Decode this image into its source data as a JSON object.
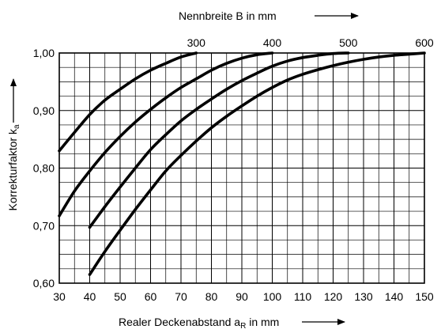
{
  "chart_data": {
    "type": "line",
    "top_axis_label": "Nennbreite B in mm",
    "xlabel_main": "Realer Deckenabstand a",
    "xlabel_sub": "R",
    "xlabel_unit": " in mm",
    "ylabel_main": "Korrekturfaktor k",
    "ylabel_sub": "a",
    "xlim": [
      30,
      150
    ],
    "ylim": [
      0.6,
      1.0
    ],
    "x_ticks": [
      "30",
      "40",
      "50",
      "60",
      "70",
      "80",
      "90",
      "100",
      "110",
      "120",
      "130",
      "140",
      "150"
    ],
    "y_ticks": [
      "0,60",
      "0,70",
      "0,80",
      "0,90",
      "1,00"
    ],
    "series": [
      {
        "name": "300",
        "x": [
          30,
          35,
          40,
          45,
          50,
          55,
          60,
          65,
          70,
          75
        ],
        "y": [
          0.83,
          0.862,
          0.893,
          0.918,
          0.937,
          0.955,
          0.97,
          0.982,
          0.993,
          1.0
        ]
      },
      {
        "name": "400",
        "x": [
          30,
          35,
          40,
          45,
          50,
          55,
          60,
          65,
          70,
          75,
          80,
          85,
          90,
          95,
          100
        ],
        "y": [
          0.717,
          0.76,
          0.795,
          0.827,
          0.855,
          0.88,
          0.902,
          0.922,
          0.94,
          0.955,
          0.97,
          0.982,
          0.991,
          0.997,
          1.0
        ]
      },
      {
        "name": "500",
        "x": [
          40,
          45,
          50,
          55,
          60,
          65,
          70,
          75,
          80,
          85,
          90,
          95,
          100,
          105,
          110,
          115,
          120,
          125
        ],
        "y": [
          0.697,
          0.733,
          0.767,
          0.8,
          0.832,
          0.858,
          0.882,
          0.902,
          0.92,
          0.937,
          0.952,
          0.965,
          0.977,
          0.986,
          0.992,
          0.996,
          0.999,
          1.0
        ]
      },
      {
        "name": "600",
        "x": [
          40,
          45,
          50,
          55,
          60,
          65,
          70,
          75,
          80,
          85,
          90,
          95,
          100,
          105,
          110,
          115,
          120,
          125,
          130,
          135,
          140,
          145,
          150
        ],
        "y": [
          0.615,
          0.655,
          0.692,
          0.728,
          0.762,
          0.795,
          0.822,
          0.847,
          0.87,
          0.89,
          0.908,
          0.925,
          0.94,
          0.953,
          0.963,
          0.971,
          0.978,
          0.984,
          0.989,
          0.993,
          0.996,
          0.998,
          1.0
        ]
      }
    ],
    "grid": true
  }
}
